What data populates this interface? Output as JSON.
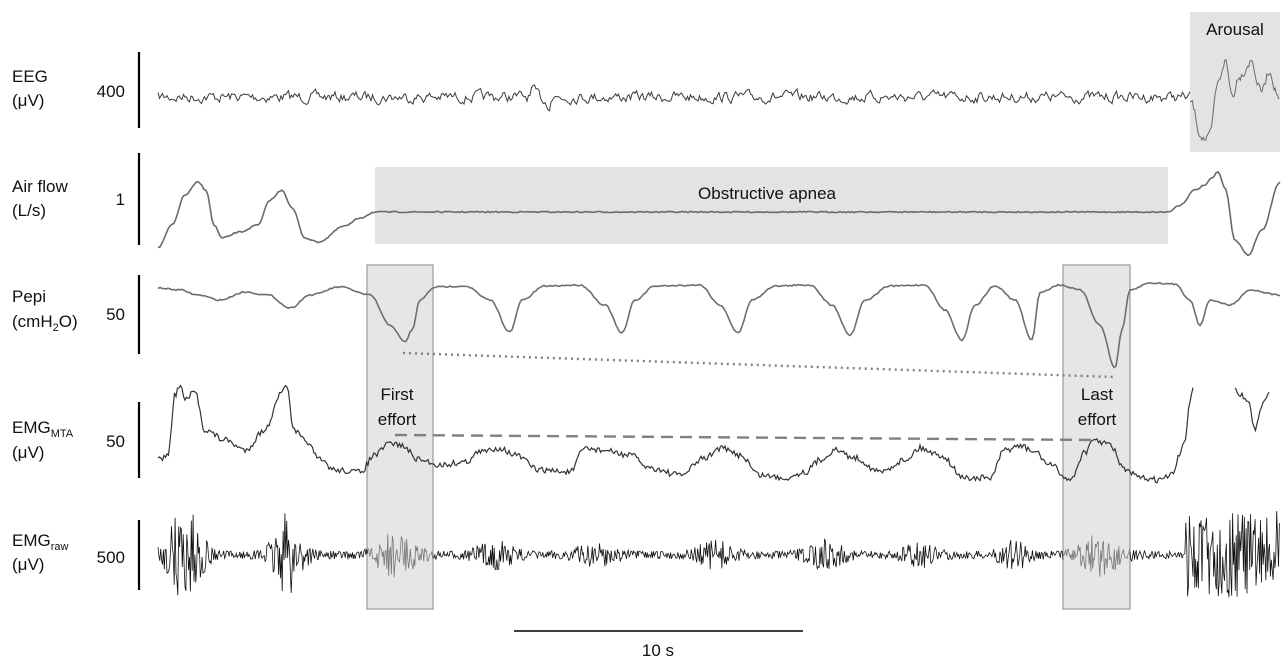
{
  "channels": [
    {
      "id": "eeg",
      "label_line1": "EEG",
      "label_line2": "(μV)",
      "scale": "400"
    },
    {
      "id": "airflow",
      "label_line1": "Air flow",
      "label_line2": "(L/s)",
      "scale": "1"
    },
    {
      "id": "pepi",
      "label_line1": "Pepi",
      "label_line2_pre": "(cmH",
      "label_line2_sub": "2",
      "label_line2_post": "O)",
      "scale": "50"
    },
    {
      "id": "emgmta",
      "label_line1": "EMG",
      "label_line1_sub": "MTA",
      "label_line2": "(μV)",
      "scale": "50"
    },
    {
      "id": "emgraw",
      "label_line1": "EMG",
      "label_line1_sub": "raw",
      "label_line2": "(μV)",
      "scale": "500"
    }
  ],
  "annotations": {
    "arousal": "Arousal",
    "apnea": "Obstructive apnea",
    "first_effort_line1": "First",
    "first_effort_line2": "effort",
    "last_effort_line1": "Last",
    "last_effort_line2": "effort"
  },
  "scale_bar": {
    "label": "10 s"
  },
  "colors": {
    "trace_dark": "#333333",
    "trace_light": "#777777",
    "shade": "#e3e3e3",
    "box_edge": "#9a9a9a",
    "guide": "#808080"
  }
}
